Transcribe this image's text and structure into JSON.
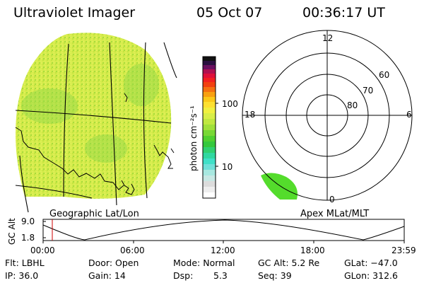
{
  "header": {
    "title": "Ultraviolet Imager",
    "date": "05 Oct 07",
    "time": "00:36:17 UT"
  },
  "left_map": {
    "label": "Geographic Lat/Lon"
  },
  "right_map": {
    "label": "Apex MLat/MLT",
    "mlt_labels": {
      "top": "12",
      "left": "18",
      "right": "6",
      "bottom": "0"
    },
    "lat_labels": [
      "60",
      "70",
      "80"
    ]
  },
  "colorbar": {
    "unit_label": "photon cm⁻²s⁻¹",
    "scale": "log",
    "tick_labels": [
      "100",
      "10"
    ]
  },
  "altitude_plot": {
    "ylabel": "GC Alt",
    "y_ticks": [
      "9.0",
      "1.8"
    ],
    "x_ticks": [
      "00:00",
      "06:00",
      "12:00",
      "18:00",
      "23:59"
    ]
  },
  "info": {
    "flt": "Flt: LBHL",
    "door": "Door: Open",
    "mode": "Mode: Normal",
    "gc_alt": "GC Alt: 5.2 Re",
    "glat": "GLat: −47.0",
    "ip": "IP: 36.0",
    "gain": "Gain: 14",
    "dsp_label": "Dsp:",
    "dsp_value": "5.3",
    "seq": "Seq: 39",
    "glon": "GLon: 312.6"
  },
  "colors": {
    "map_base": "#d2ea48",
    "auroral_oval": "#55dd2a",
    "marker": "#cc0000"
  }
}
